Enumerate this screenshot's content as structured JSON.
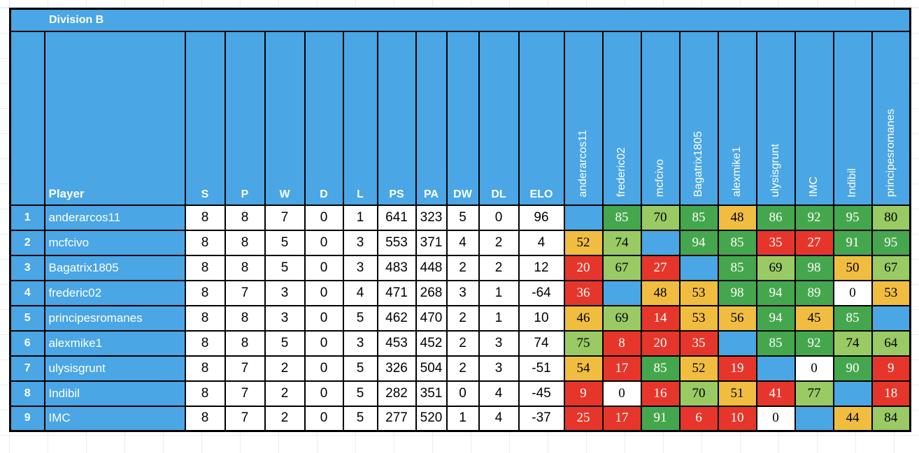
{
  "title": "Division B",
  "columns": {
    "player": "Player",
    "stats": [
      "S",
      "P",
      "W",
      "D",
      "L",
      "PS",
      "PA",
      "DW",
      "DL",
      "ELO"
    ]
  },
  "opponents": [
    "anderarcos11",
    "frederic02",
    "mcfcivo",
    "Bagatrix1805",
    "alexmike1",
    "ulysisgrunt",
    "IMC",
    "Indibil",
    "principesromanes"
  ],
  "colors": {
    "header_blue": "#4AA6E4",
    "self_blue": "#4AA6E4",
    "win_green": "#45A74D",
    "mid_green": "#99CA64",
    "draw_orange": "#F0BD41",
    "loss_red": "#E6362B",
    "cell_white": "#FFFFFF",
    "border_black": "#000000"
  },
  "rows": [
    {
      "rank": "1",
      "player": "anderarcos11",
      "stats": [
        8,
        8,
        7,
        0,
        1,
        641,
        323,
        5,
        0,
        96
      ],
      "results": [
        {
          "v": "",
          "c": "self"
        },
        {
          "v": "85",
          "c": "g"
        },
        {
          "v": "70",
          "c": "lg"
        },
        {
          "v": "85",
          "c": "g"
        },
        {
          "v": "48",
          "c": "o"
        },
        {
          "v": "86",
          "c": "g"
        },
        {
          "v": "92",
          "c": "g"
        },
        {
          "v": "95",
          "c": "g"
        },
        {
          "v": "80",
          "c": "lg"
        }
      ]
    },
    {
      "rank": "2",
      "player": "mcfcivo",
      "stats": [
        8,
        8,
        5,
        0,
        3,
        553,
        371,
        4,
        2,
        4
      ],
      "results": [
        {
          "v": "52",
          "c": "o"
        },
        {
          "v": "74",
          "c": "lg"
        },
        {
          "v": "",
          "c": "self"
        },
        {
          "v": "94",
          "c": "g"
        },
        {
          "v": "85",
          "c": "g"
        },
        {
          "v": "35",
          "c": "r"
        },
        {
          "v": "27",
          "c": "r"
        },
        {
          "v": "91",
          "c": "g"
        },
        {
          "v": "95",
          "c": "g"
        }
      ]
    },
    {
      "rank": "3",
      "player": "Bagatrix1805",
      "stats": [
        8,
        8,
        5,
        0,
        3,
        483,
        448,
        2,
        2,
        12
      ],
      "results": [
        {
          "v": "20",
          "c": "r"
        },
        {
          "v": "67",
          "c": "lg"
        },
        {
          "v": "27",
          "c": "r"
        },
        {
          "v": "",
          "c": "self"
        },
        {
          "v": "85",
          "c": "g"
        },
        {
          "v": "69",
          "c": "lg"
        },
        {
          "v": "98",
          "c": "g"
        },
        {
          "v": "50",
          "c": "o"
        },
        {
          "v": "67",
          "c": "lg"
        }
      ]
    },
    {
      "rank": "4",
      "player": "frederic02",
      "stats": [
        8,
        7,
        3,
        0,
        4,
        471,
        268,
        3,
        1,
        -64
      ],
      "results": [
        {
          "v": "36",
          "c": "r"
        },
        {
          "v": "",
          "c": "self"
        },
        {
          "v": "48",
          "c": "o"
        },
        {
          "v": "53",
          "c": "o"
        },
        {
          "v": "98",
          "c": "g"
        },
        {
          "v": "94",
          "c": "g"
        },
        {
          "v": "89",
          "c": "g"
        },
        {
          "v": "0",
          "c": "w"
        },
        {
          "v": "53",
          "c": "o"
        }
      ]
    },
    {
      "rank": "5",
      "player": "principesromanes",
      "stats": [
        8,
        8,
        3,
        0,
        5,
        462,
        470,
        2,
        1,
        10
      ],
      "results": [
        {
          "v": "46",
          "c": "o"
        },
        {
          "v": "69",
          "c": "lg"
        },
        {
          "v": "14",
          "c": "r"
        },
        {
          "v": "53",
          "c": "o"
        },
        {
          "v": "56",
          "c": "o"
        },
        {
          "v": "94",
          "c": "g"
        },
        {
          "v": "45",
          "c": "o"
        },
        {
          "v": "85",
          "c": "g"
        },
        {
          "v": "",
          "c": "self"
        }
      ]
    },
    {
      "rank": "6",
      "player": "alexmike1",
      "stats": [
        8,
        8,
        5,
        0,
        3,
        453,
        452,
        2,
        3,
        74
      ],
      "results": [
        {
          "v": "75",
          "c": "lg"
        },
        {
          "v": "8",
          "c": "r"
        },
        {
          "v": "20",
          "c": "r"
        },
        {
          "v": "35",
          "c": "r"
        },
        {
          "v": "",
          "c": "self"
        },
        {
          "v": "85",
          "c": "g"
        },
        {
          "v": "92",
          "c": "g"
        },
        {
          "v": "74",
          "c": "lg"
        },
        {
          "v": "64",
          "c": "lg"
        }
      ]
    },
    {
      "rank": "7",
      "player": "ulysisgrunt",
      "stats": [
        8,
        7,
        2,
        0,
        5,
        326,
        504,
        2,
        3,
        -51
      ],
      "results": [
        {
          "v": "54",
          "c": "o"
        },
        {
          "v": "17",
          "c": "r"
        },
        {
          "v": "85",
          "c": "g"
        },
        {
          "v": "52",
          "c": "o"
        },
        {
          "v": "19",
          "c": "r"
        },
        {
          "v": "",
          "c": "self"
        },
        {
          "v": "0",
          "c": "w"
        },
        {
          "v": "90",
          "c": "g"
        },
        {
          "v": "9",
          "c": "r"
        }
      ]
    },
    {
      "rank": "8",
      "player": "Indibil",
      "stats": [
        8,
        7,
        2,
        0,
        5,
        282,
        351,
        0,
        4,
        -45
      ],
      "results": [
        {
          "v": "9",
          "c": "r"
        },
        {
          "v": "0",
          "c": "w"
        },
        {
          "v": "16",
          "c": "r"
        },
        {
          "v": "70",
          "c": "lg"
        },
        {
          "v": "51",
          "c": "o"
        },
        {
          "v": "41",
          "c": "r"
        },
        {
          "v": "77",
          "c": "lg"
        },
        {
          "v": "",
          "c": "self"
        },
        {
          "v": "18",
          "c": "r"
        }
      ]
    },
    {
      "rank": "9",
      "player": "IMC",
      "stats": [
        8,
        7,
        2,
        0,
        5,
        277,
        520,
        1,
        4,
        -37
      ],
      "results": [
        {
          "v": "25",
          "c": "r"
        },
        {
          "v": "17",
          "c": "r"
        },
        {
          "v": "91",
          "c": "g"
        },
        {
          "v": "6",
          "c": "r"
        },
        {
          "v": "10",
          "c": "r"
        },
        {
          "v": "0",
          "c": "w"
        },
        {
          "v": "",
          "c": "self"
        },
        {
          "v": "44",
          "c": "o"
        },
        {
          "v": "84",
          "c": "lg"
        }
      ]
    }
  ]
}
